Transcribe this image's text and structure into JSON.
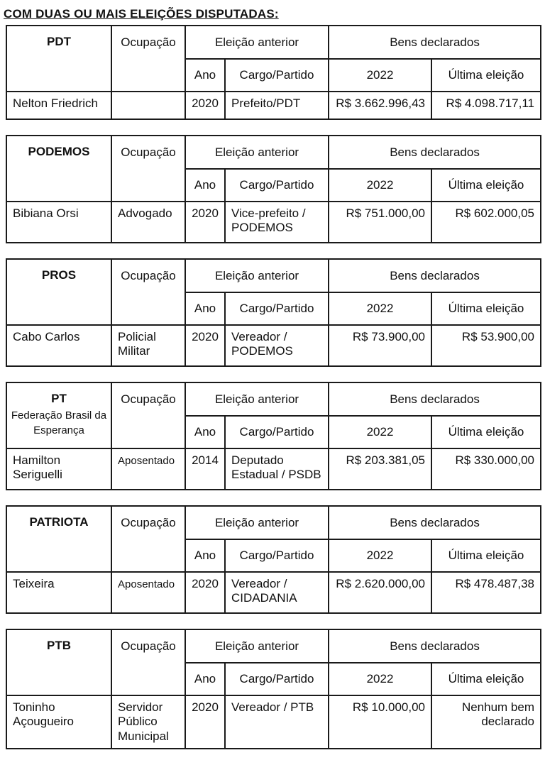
{
  "page": {
    "title": "COM DUAS OU MAIS ELEIÇÕES DISPUTADAS:"
  },
  "colors": {
    "background": "#ffffff",
    "border": "#1a1a1a",
    "text": "#111111"
  },
  "headers": {
    "occupation": "Ocupação",
    "previous_election": "Eleição anterior",
    "declared_assets": "Bens declarados",
    "year": "Ano",
    "office_party": "Cargo/Partido",
    "assets_2022": "2022",
    "last_election": "Última eleição"
  },
  "tables": [
    {
      "party": "PDT",
      "party_note": "",
      "candidate": "Nelton Friedrich",
      "occupation": "",
      "year": "2020",
      "office_party": "Prefeito/PDT",
      "assets_2022": "R$ 3.662.996,43",
      "assets_last": "R$ 4.098.717,11"
    },
    {
      "party": "PODEMOS",
      "party_note": "",
      "candidate": "Bibiana Orsi",
      "occupation": "Advogado",
      "year": "2020",
      "office_party": "Vice-prefeito / PODEMOS",
      "assets_2022": "R$ 751.000,00",
      "assets_last": "R$ 602.000,05"
    },
    {
      "party": "PROS",
      "party_note": "",
      "candidate": "Cabo Carlos",
      "occupation": "Policial Militar",
      "year": "2020",
      "office_party": "Vereador / PODEMOS",
      "assets_2022": "R$ 73.900,00",
      "assets_last": "R$ 53.900,00"
    },
    {
      "party": "PT",
      "party_note": "Federação Brasil da Esperança",
      "candidate": "Hamilton Seriguelli",
      "occupation": "Aposentado",
      "year": "2014",
      "office_party": "Deputado Estadual / PSDB",
      "assets_2022": "R$ 203.381,05",
      "assets_last": "R$ 330.000,00"
    },
    {
      "party": "PATRIOTA",
      "party_note": "",
      "candidate": "Teixeira",
      "occupation": "Aposentado",
      "year": "2020",
      "office_party": "Vereador / CIDADANIA",
      "assets_2022": "R$ 2.620.000,00",
      "assets_last": "R$ 478.487,38"
    },
    {
      "party": "PTB",
      "party_note": "",
      "candidate": "Toninho Açougueiro",
      "occupation": "Servidor Público Municipal",
      "year": "2020",
      "office_party": "Vereador / PTB",
      "assets_2022": "R$ 10.000,00",
      "assets_last": "Nenhum bem declarado"
    }
  ]
}
